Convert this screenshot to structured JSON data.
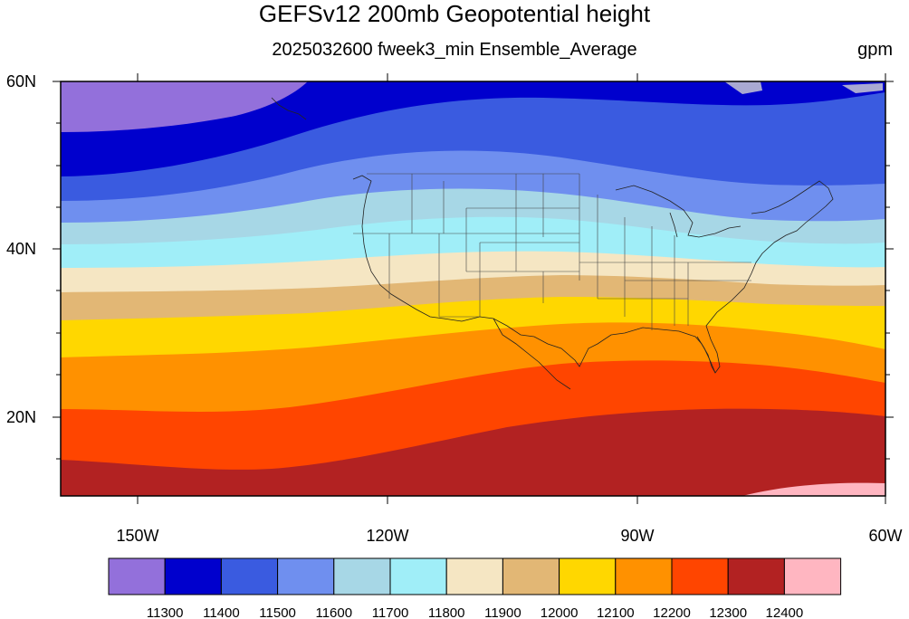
{
  "title": "GEFSv12 200mb Geopotential height",
  "subtitle": "2025032600 fweek3_min Ensemble_Average",
  "units": "gpm",
  "map": {
    "lat_ticks": [
      "60N",
      "40N",
      "20N"
    ],
    "lon_ticks": [
      "150W",
      "120W",
      "90W",
      "60W"
    ],
    "lon_range": [
      -159,
      -60
    ],
    "lat_range": [
      10,
      60
    ]
  },
  "colorbar": {
    "colors": [
      "#9370DB",
      "#0000CD",
      "#3A5BE0",
      "#6F8FEF",
      "#A7D7E6",
      "#A0EEF8",
      "#F5E6C3",
      "#E2B775",
      "#FFD700",
      "#FF9100",
      "#FF4500",
      "#B22222",
      "#FFB6C1"
    ],
    "labels": [
      "11300",
      "11400",
      "11500",
      "11600",
      "11700",
      "11800",
      "11900",
      "12000",
      "12100",
      "12200",
      "12300",
      "12400"
    ]
  }
}
